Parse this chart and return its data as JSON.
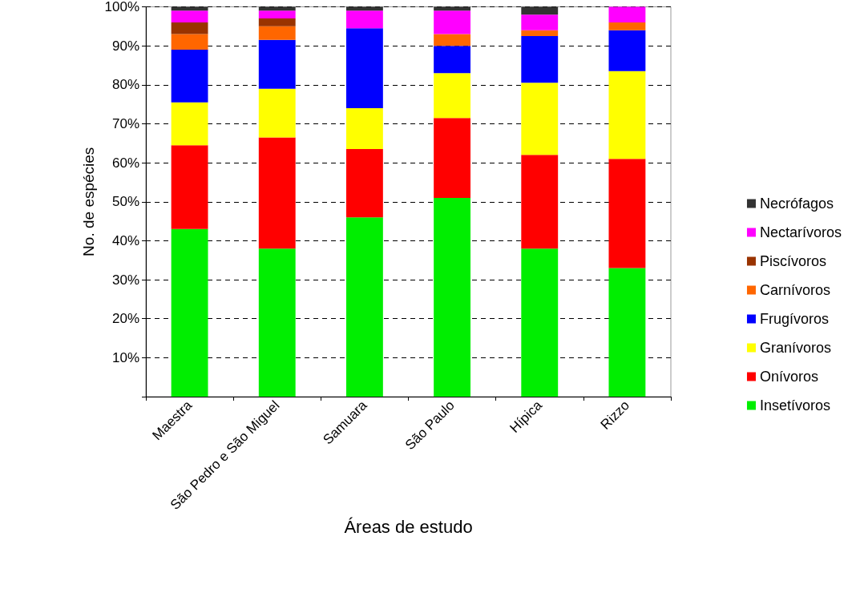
{
  "chart_data": {
    "type": "bar",
    "stacked": true,
    "xlabel": "Áreas de estudo",
    "ylabel": "No. de espécies",
    "categories": [
      "Maestra",
      "São Pedro e São Miguel",
      "Samuara",
      "São Paulo",
      "Hípica",
      "Rizzo"
    ],
    "ylim": [
      0,
      100
    ],
    "yticks": [
      {
        "value": 0,
        "label": null
      },
      {
        "value": 10,
        "label": "10%"
      },
      {
        "value": 20,
        "label": "20%"
      },
      {
        "value": 30,
        "label": "30%"
      },
      {
        "value": 40,
        "label": "40%"
      },
      {
        "value": 50,
        "label": "50%"
      },
      {
        "value": 60,
        "label": "60%"
      },
      {
        "value": 70,
        "label": "70%"
      },
      {
        "value": 80,
        "label": "80%"
      },
      {
        "value": 90,
        "label": "90%"
      },
      {
        "value": 100,
        "label": "100%"
      }
    ],
    "grid": "y",
    "legend": "right",
    "series": [
      {
        "name": "Insetívoros",
        "color": "#00ee00",
        "values": [
          43,
          38,
          46,
          51,
          38,
          33
        ]
      },
      {
        "name": "Onívoros",
        "color": "#ff0000",
        "values": [
          21.5,
          28.5,
          17.5,
          20.5,
          24,
          28
        ]
      },
      {
        "name": "Granívoros",
        "color": "#ffff00",
        "values": [
          11,
          12.5,
          10.5,
          11.5,
          18.5,
          22.5
        ]
      },
      {
        "name": "Frugívoros",
        "color": "#0000ff",
        "values": [
          13.5,
          12.5,
          20.5,
          7,
          12,
          10.5
        ]
      },
      {
        "name": "Carnívoros",
        "color": "#ff6600",
        "values": [
          4,
          3.5,
          0,
          3,
          1.5,
          2
        ]
      },
      {
        "name": "Piscívoros",
        "color": "#993300",
        "values": [
          3,
          2,
          0,
          0,
          0,
          0
        ]
      },
      {
        "name": "Nectarívoros",
        "color": "#ff00ff",
        "values": [
          3,
          2,
          4.5,
          6,
          4,
          4
        ]
      },
      {
        "name": "Necrófagos",
        "color": "#333333",
        "values": [
          1,
          1,
          1,
          1,
          2,
          0
        ]
      }
    ]
  }
}
